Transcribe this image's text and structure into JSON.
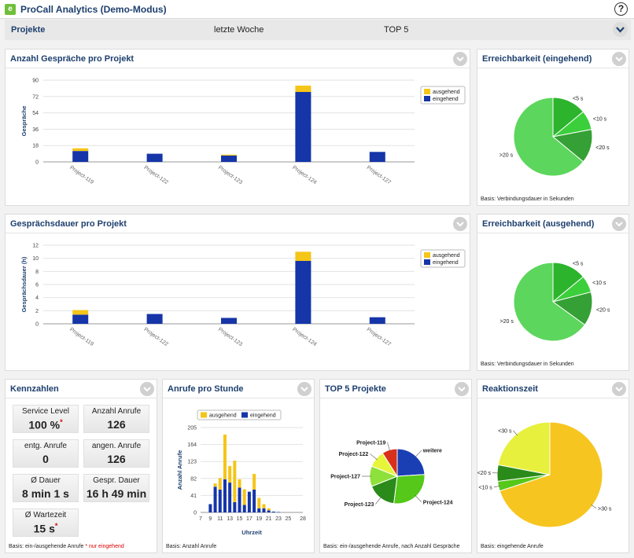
{
  "app": {
    "title": "ProCall Analytics (Demo-Modus)",
    "logo": "e",
    "help": "?"
  },
  "filter": {
    "projects": "Projekte",
    "period": "letzte Woche",
    "top": "TOP 5"
  },
  "colors": {
    "incoming": "#1535a8",
    "outgoing": "#f5c518",
    "title": "#1d3f6e"
  },
  "panels": {
    "calls_per_project": "Anzahl Gespräche pro Projekt",
    "reach_in": "Erreichbarkeit (eingehend)",
    "duration_per_project": "Gesprächsdauer pro Projekt",
    "reach_out": "Erreichbarkeit (ausgehend)",
    "kennzahlen": "Kennzahlen",
    "calls_per_hour": "Anrufe pro Stunde",
    "top5": "TOP 5 Projekte",
    "reaction": "Reaktionszeit"
  },
  "footers": {
    "reach_in": "Basis: Verbindungsdauer in Sekunden",
    "reach_out": "Basis: Verbindungsdauer in Sekunden",
    "kennzahlen": "Basis: ein-/ausgehende Anrufe",
    "kennzahlen_note": "nur eingehend",
    "calls_per_hour": "Basis: Anzahl Anrufe",
    "top5": "Basis: ein-/ausgehende Anrufe, nach Anzahl Gespräche",
    "reaction": "Basis: eingehende Anrufe"
  },
  "kpis": [
    {
      "label": "Service Level",
      "value": "100 %",
      "star": true
    },
    {
      "label": "Anzahl Anrufe",
      "value": "126",
      "star": false
    },
    {
      "label": "entg. Anrufe",
      "value": "0",
      "star": false
    },
    {
      "label": "angen. Anrufe",
      "value": "126",
      "star": false
    },
    {
      "label": "Ø Dauer",
      "value": "8 min 1 s",
      "star": false
    },
    {
      "label": "Gespr. Dauer",
      "value": "16 h 49 min",
      "star": false
    },
    {
      "label": "Ø Wartezeit",
      "value": "15 s",
      "star": true
    }
  ],
  "chart_data": [
    {
      "id": "calls",
      "type": "bar",
      "stacked": true,
      "categories": [
        "Project-119",
        "Project-122",
        "Project-123",
        "Project-124",
        "Project-127"
      ],
      "series": [
        {
          "name": "eingehend",
          "color": "#1535a8",
          "values": [
            12,
            9,
            7,
            77,
            11
          ]
        },
        {
          "name": "ausgehend",
          "color": "#f5c518",
          "values": [
            3,
            0,
            1,
            7,
            0
          ]
        }
      ],
      "ylabel": "Gespräche",
      "yticks": [
        0,
        18,
        36,
        54,
        72,
        90
      ],
      "ylim": [
        0,
        90
      ],
      "grid": true,
      "legend": "top-right"
    },
    {
      "id": "duration",
      "type": "bar",
      "stacked": true,
      "categories": [
        "Project-119",
        "Project-122",
        "Project-123",
        "Project-124",
        "Project-127"
      ],
      "series": [
        {
          "name": "eingehend",
          "color": "#1535a8",
          "values": [
            1.4,
            1.5,
            0.9,
            9.6,
            1.0
          ]
        },
        {
          "name": "ausgehend",
          "color": "#f5c518",
          "values": [
            0.7,
            0,
            0,
            1.4,
            0
          ]
        }
      ],
      "ylabel": "Gesprächsdauer (h)",
      "yticks": [
        0,
        2,
        4,
        6,
        8,
        10,
        12
      ],
      "ylim": [
        0,
        12
      ],
      "grid": true,
      "legend": "top-right"
    },
    {
      "id": "reach_in",
      "type": "pie",
      "labels": [
        "<5 s",
        "<10 s",
        "<20 s",
        ">20 s"
      ],
      "values": [
        14,
        8,
        14,
        64
      ],
      "colors": [
        "#2db42d",
        "#3ccf3c",
        "#35a035",
        "#5cd65c"
      ]
    },
    {
      "id": "reach_out",
      "type": "pie",
      "labels": [
        "<5 s",
        "<10 s",
        "<20 s",
        ">20 s"
      ],
      "values": [
        14,
        7,
        14,
        65
      ],
      "colors": [
        "#2db42d",
        "#3ccf3c",
        "#35a035",
        "#5cd65c"
      ]
    },
    {
      "id": "hour",
      "type": "bar",
      "stacked": true,
      "x": [
        9,
        10,
        11,
        12,
        13,
        14,
        15,
        16,
        17,
        18,
        19,
        20,
        21,
        22,
        23
      ],
      "xticks": [
        7,
        9,
        11,
        13,
        15,
        17,
        19,
        21,
        23,
        25,
        28
      ],
      "series": [
        {
          "name": "eingehend",
          "color": "#1535a8",
          "values": [
            20,
            62,
            55,
            80,
            72,
            25,
            60,
            18,
            50,
            55,
            10,
            10,
            5,
            2,
            1
          ]
        },
        {
          "name": "ausgehend",
          "color": "#f5c518",
          "values": [
            0,
            8,
            28,
            108,
            40,
            100,
            20,
            38,
            0,
            38,
            25,
            10,
            5,
            0,
            0
          ]
        }
      ],
      "ylabel": "Anzahl Anrufe",
      "xlabel": "Uhrzeit",
      "yticks": [
        0,
        41,
        82,
        123,
        164,
        205
      ],
      "ylim": [
        0,
        205
      ],
      "legend": "top"
    },
    {
      "id": "top5",
      "type": "pie",
      "labels": [
        "weitere",
        "Project-124",
        "Project-123",
        "Project-127",
        "Project-122",
        "Project-119"
      ],
      "values": [
        24,
        28,
        17,
        12,
        10,
        9
      ],
      "colors": [
        "#1a3fb5",
        "#55c81a",
        "#2a8a1a",
        "#8ee03a",
        "#e6f53a",
        "#d8301a"
      ]
    },
    {
      "id": "reaction",
      "type": "pie",
      "labels": [
        ">30 s",
        "<10 s",
        "<20 s",
        "<30 s"
      ],
      "values": [
        70,
        3,
        5,
        22
      ],
      "colors": [
        "#f7c51f",
        "#57c81a",
        "#2a8a1a",
        "#e7f03c"
      ]
    }
  ]
}
